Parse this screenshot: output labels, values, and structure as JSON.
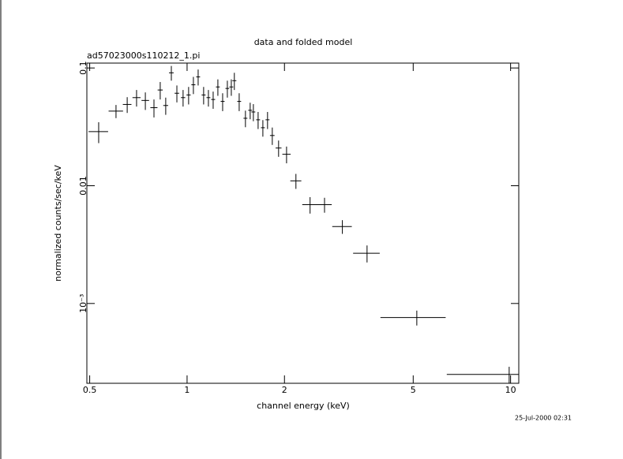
{
  "chart_data": {
    "type": "scatter",
    "title": "data and folded model",
    "subtitle": "ad57023000s110212_1.pi",
    "xlabel": "channel energy (keV)",
    "ylabel": "normalized counts/sec/keV",
    "annotation": "25-Jul-2000 02:31",
    "xscale": "log",
    "yscale": "log",
    "color": "#000000",
    "xlim": [
      0.49,
      10.6
    ],
    "ylim": [
      0.00021,
      0.11
    ],
    "xticks": [
      0.5,
      1,
      2,
      5,
      10
    ],
    "yticks": [
      0.1,
      0.01,
      {
        "value": 0.001,
        "label": "10⁻³"
      }
    ],
    "x": [
      0.533,
      0.603,
      0.653,
      0.698,
      0.743,
      0.79,
      0.826,
      0.859,
      0.894,
      0.93,
      0.972,
      1.011,
      1.046,
      1.082,
      1.125,
      1.164,
      1.204,
      1.245,
      1.288,
      1.332,
      1.37,
      1.4,
      1.449,
      1.515,
      1.567,
      1.603,
      1.658,
      1.715,
      1.773,
      1.834,
      1.918,
      2.03,
      2.17,
      2.4,
      2.66,
      3.02,
      3.6,
      5.13,
      9.9
    ],
    "x_err": [
      0.037,
      0.031,
      0.02,
      0.02,
      0.02,
      0.02,
      0.015,
      0.015,
      0.015,
      0.015,
      0.015,
      0.015,
      0.015,
      0.015,
      0.016,
      0.016,
      0.017,
      0.017,
      0.018,
      0.018,
      0.019,
      0.02,
      0.02,
      0.021,
      0.022,
      0.022,
      0.023,
      0.024,
      0.025,
      0.03,
      0.04,
      0.06,
      0.085,
      0.13,
      0.14,
      0.21,
      0.34,
      1.17,
      3.55
    ],
    "y": [
      0.0288,
      0.043,
      0.049,
      0.056,
      0.053,
      0.046,
      0.065,
      0.048,
      0.091,
      0.061,
      0.056,
      0.059,
      0.072,
      0.084,
      0.059,
      0.056,
      0.054,
      0.069,
      0.052,
      0.067,
      0.069,
      0.078,
      0.052,
      0.0374,
      0.0437,
      0.0423,
      0.0363,
      0.0311,
      0.0363,
      0.0267,
      0.0209,
      0.0185,
      0.011,
      0.0069,
      0.0069,
      0.0045,
      0.00267,
      0.00076,
      0.00025
    ],
    "y_err": [
      0.0058,
      0.0055,
      0.0075,
      0.009,
      0.009,
      0.008,
      0.011,
      0.008,
      0.013,
      0.01,
      0.009,
      0.01,
      0.012,
      0.013,
      0.01,
      0.009,
      0.009,
      0.011,
      0.009,
      0.011,
      0.011,
      0.013,
      0.009,
      0.006,
      0.007,
      0.007,
      0.006,
      0.005,
      0.006,
      0.0045,
      0.0033,
      0.003,
      0.0016,
      0.0011,
      0.001,
      0.0006,
      0.00044,
      0.00011,
      4e-05
    ]
  }
}
